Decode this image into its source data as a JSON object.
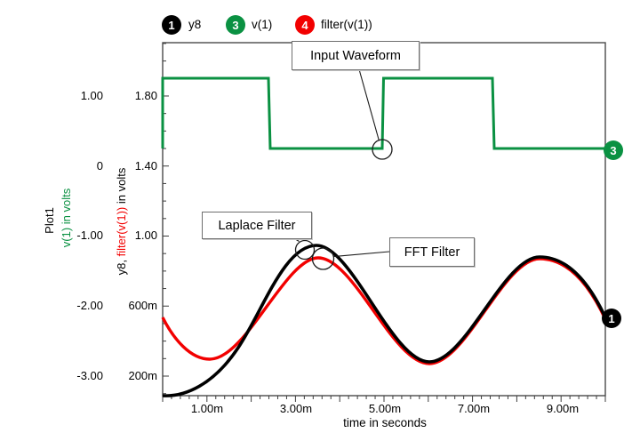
{
  "legend": {
    "items": [
      {
        "badge": "1",
        "label": "y8"
      },
      {
        "badge": "3",
        "label": "v(1)"
      },
      {
        "badge": "4",
        "label": "filter(v(1))"
      }
    ]
  },
  "axes": {
    "plot_name": "Plot1",
    "left_axis_title": "v(1) in volts",
    "inner_axis_title_prefix": "y8, ",
    "inner_axis_title_highlight": "filter(v(1))",
    "inner_axis_title_suffix": " in volts",
    "x_axis_title": "time in seconds",
    "outer_tick_labels": [
      "1.00",
      "0",
      "-1.00",
      "-2.00",
      "-3.00"
    ],
    "inner_tick_labels": [
      "1.80",
      "1.40",
      "1.00",
      "600m",
      "200m"
    ],
    "x_tick_labels": [
      "1.00m",
      "3.00m",
      "5.00m",
      "7.00m",
      "9.00m"
    ]
  },
  "annotations": {
    "input": "Input Waveform",
    "laplace": "Laplace Filter",
    "fft": "FFT Filter"
  },
  "trace_end_badges": {
    "green": "3",
    "black": "1"
  },
  "colors": {
    "green": "#0a9142",
    "red": "#f20000",
    "black": "#000000",
    "border": "#4a4a4a"
  },
  "chart_data": {
    "type": "line",
    "title": "Plot1",
    "xlabel": "time in seconds",
    "x_unit": "ms",
    "xlim_ms": [
      0,
      10
    ],
    "legend_position": "top",
    "grid": false,
    "axes": [
      {
        "id": "outer",
        "label": "v(1) in volts",
        "tick_labels": [
          "1.00",
          "0",
          "-1.00",
          "-2.00",
          "-3.00"
        ]
      },
      {
        "id": "inner",
        "label": "y8, filter(v(1)) in volts",
        "tick_labels": [
          "1.80",
          "1.40",
          "1.00",
          "600m",
          "200m"
        ],
        "range_volts": [
          0.08,
          2.1
        ]
      }
    ],
    "series": [
      {
        "name": "v(1)",
        "color": "#0a9142",
        "axis": "outer",
        "waveform": "square",
        "high_v": 1.25,
        "low_v": 0.25,
        "period_ms": 5,
        "duty": 0.5,
        "points_t_ms_v": [
          [
            0,
            0.25
          ],
          [
            0,
            1.25
          ],
          [
            2.5,
            1.25
          ],
          [
            2.5,
            0.25
          ],
          [
            5,
            0.25
          ],
          [
            5,
            1.25
          ],
          [
            7.5,
            1.25
          ],
          [
            7.5,
            0.25
          ],
          [
            10,
            0.25
          ]
        ]
      },
      {
        "name": "y8",
        "color": "#000000",
        "axis": "inner",
        "waveform": "sine-with-startup-transient",
        "points_t_ms_v": [
          [
            0,
            0.08
          ],
          [
            0.5,
            0.09
          ],
          [
            1.0,
            0.15
          ],
          [
            1.5,
            0.33
          ],
          [
            2.0,
            0.55
          ],
          [
            2.5,
            0.76
          ],
          [
            3.0,
            0.9
          ],
          [
            3.5,
            0.94
          ],
          [
            4.0,
            0.87
          ],
          [
            4.5,
            0.7
          ],
          [
            5.0,
            0.51
          ],
          [
            5.5,
            0.34
          ],
          [
            6.0,
            0.28
          ],
          [
            6.5,
            0.34
          ],
          [
            7.0,
            0.49
          ],
          [
            7.5,
            0.67
          ],
          [
            8.0,
            0.82
          ],
          [
            8.5,
            0.88
          ],
          [
            9.0,
            0.84
          ],
          [
            9.5,
            0.7
          ],
          [
            10.0,
            0.52
          ]
        ]
      },
      {
        "name": "filter(v(1))",
        "color": "#f20000",
        "axis": "inner",
        "waveform": "sine-with-startup-transient",
        "points_t_ms_v": [
          [
            0,
            0.53
          ],
          [
            0.5,
            0.38
          ],
          [
            1.0,
            0.31
          ],
          [
            1.5,
            0.35
          ],
          [
            2.0,
            0.51
          ],
          [
            2.5,
            0.69
          ],
          [
            3.0,
            0.84
          ],
          [
            3.5,
            0.88
          ],
          [
            4.0,
            0.83
          ],
          [
            4.5,
            0.69
          ],
          [
            5.0,
            0.5
          ],
          [
            5.5,
            0.34
          ],
          [
            6.0,
            0.27
          ],
          [
            6.5,
            0.33
          ],
          [
            7.0,
            0.48
          ],
          [
            7.5,
            0.66
          ],
          [
            8.0,
            0.81
          ],
          [
            8.5,
            0.87
          ],
          [
            9.0,
            0.83
          ],
          [
            9.5,
            0.69
          ],
          [
            10.0,
            0.51
          ]
        ]
      }
    ],
    "annotations": [
      "Input Waveform",
      "Laplace Filter",
      "FFT Filter"
    ]
  }
}
